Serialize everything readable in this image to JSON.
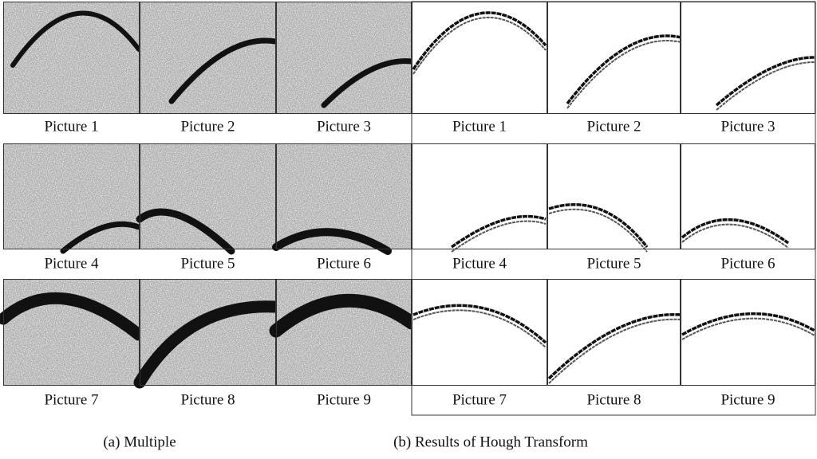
{
  "panels": [
    {
      "caption": "(a) Multiple",
      "rows": [
        [
          "Picture 1",
          "Picture 2",
          "Picture 3"
        ],
        [
          "Picture 4",
          "Picture 5",
          "Picture 6"
        ],
        [
          "Picture 7",
          "Picture 8",
          "Picture 9"
        ]
      ]
    },
    {
      "caption": "(b) Results of Hough Transform",
      "rows": [
        [
          "Picture 1",
          "Picture 2",
          "Picture 3"
        ],
        [
          "Picture 4",
          "Picture 5",
          "Picture 6"
        ],
        [
          "Picture 7",
          "Picture 8",
          "Picture 9"
        ]
      ]
    }
  ]
}
